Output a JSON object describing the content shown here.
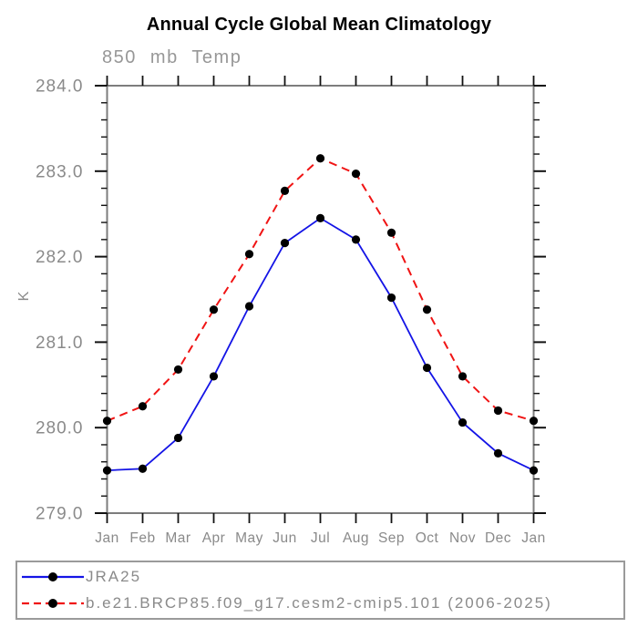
{
  "chart_data": {
    "type": "line",
    "title": "Annual Cycle Global Mean Climatology",
    "subtitle": "850 mb Temp",
    "ylabel": "K",
    "categories": [
      "Jan",
      "Feb",
      "Mar",
      "Apr",
      "May",
      "Jun",
      "Jul",
      "Aug",
      "Sep",
      "Oct",
      "Nov",
      "Dec",
      "Jan"
    ],
    "ylim": [
      279.0,
      284.0
    ],
    "ytick_major_interval": 1.0,
    "ytick_minor_interval": 0.2,
    "ytick_labels": [
      "279.0",
      "280.0",
      "281.0",
      "282.0",
      "283.0",
      "284.0"
    ],
    "grid": false,
    "legend_position": "bottom",
    "frame_color": "#7d7d7d",
    "tick_color": "#111111",
    "label_color": "#8a8a8a",
    "marker_color": "#000000",
    "series": [
      {
        "name": "JRA25",
        "color": "#1414e6",
        "style": "solid",
        "marker": "filled-circle",
        "values": [
          279.5,
          279.52,
          279.88,
          280.6,
          281.42,
          282.16,
          282.45,
          282.2,
          281.52,
          280.7,
          280.06,
          279.7,
          279.5
        ]
      },
      {
        "name": "b.e21.BRCP85.f09_g17.cesm2-cmip5.101 (2006-2025)",
        "color": "#f01414",
        "style": "dashed",
        "marker": "filled-circle",
        "values": [
          280.08,
          280.25,
          280.68,
          281.38,
          282.03,
          282.77,
          283.15,
          282.97,
          282.28,
          281.38,
          280.6,
          280.2,
          280.08
        ]
      }
    ]
  }
}
